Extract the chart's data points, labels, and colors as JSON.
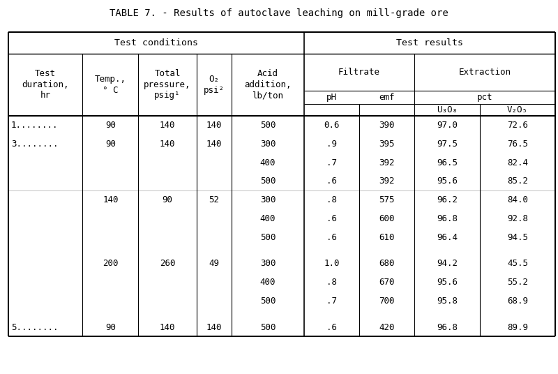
{
  "title": "TABLE 7. - Results of autoclave leaching on mill-grade ore",
  "bg_color": "#ffffff",
  "text_color": "#000000",
  "rows": [
    {
      "test": "1........",
      "temp": "90",
      "pressure": "140",
      "o2": "140",
      "acid": "500",
      "ph": "0.6",
      "emf": "390",
      "u3o8": "97.0",
      "v2o5": "72.6",
      "group_sep": false,
      "light_sep": false
    },
    {
      "test": "3........",
      "temp": "90",
      "pressure": "140",
      "o2": "140",
      "acid": "300",
      "ph": ".9",
      "emf": "395",
      "u3o8": "97.5",
      "v2o5": "76.5",
      "group_sep": false,
      "light_sep": false
    },
    {
      "test": "",
      "temp": "",
      "pressure": "",
      "o2": "",
      "acid": "400",
      "ph": ".7",
      "emf": "392",
      "u3o8": "96.5",
      "v2o5": "82.4",
      "group_sep": false,
      "light_sep": false
    },
    {
      "test": "",
      "temp": "",
      "pressure": "",
      "o2": "",
      "acid": "500",
      "ph": ".6",
      "emf": "392",
      "u3o8": "95.6",
      "v2o5": "85.2",
      "group_sep": false,
      "light_sep": false
    },
    {
      "test": "",
      "temp": "140",
      "pressure": "90",
      "o2": "52",
      "acid": "300",
      "ph": ".8",
      "emf": "575",
      "u3o8": "96.2",
      "v2o5": "84.0",
      "group_sep": false,
      "light_sep": true
    },
    {
      "test": "",
      "temp": "",
      "pressure": "",
      "o2": "",
      "acid": "400",
      "ph": ".6",
      "emf": "600",
      "u3o8": "96.8",
      "v2o5": "92.8",
      "group_sep": false,
      "light_sep": false
    },
    {
      "test": "",
      "temp": "",
      "pressure": "",
      "o2": "",
      "acid": "500",
      "ph": ".6",
      "emf": "610",
      "u3o8": "96.4",
      "v2o5": "94.5",
      "group_sep": false,
      "light_sep": false
    },
    {
      "test": "",
      "temp": "200",
      "pressure": "260",
      "o2": "49",
      "acid": "300",
      "ph": "1.0",
      "emf": "680",
      "u3o8": "94.2",
      "v2o5": "45.5",
      "group_sep": true,
      "light_sep": false
    },
    {
      "test": "",
      "temp": "",
      "pressure": "",
      "o2": "",
      "acid": "400",
      "ph": ".8",
      "emf": "670",
      "u3o8": "95.6",
      "v2o5": "55.2",
      "group_sep": false,
      "light_sep": false
    },
    {
      "test": "",
      "temp": "",
      "pressure": "",
      "o2": "",
      "acid": "500",
      "ph": ".7",
      "emf": "700",
      "u3o8": "95.8",
      "v2o5": "68.9",
      "group_sep": false,
      "light_sep": false
    },
    {
      "test": "5........",
      "temp": "90",
      "pressure": "140",
      "o2": "140",
      "acid": "500",
      "ph": ".6",
      "emf": "420",
      "u3o8": "96.8",
      "v2o5": "89.9",
      "group_sep": true,
      "light_sep": false
    }
  ]
}
